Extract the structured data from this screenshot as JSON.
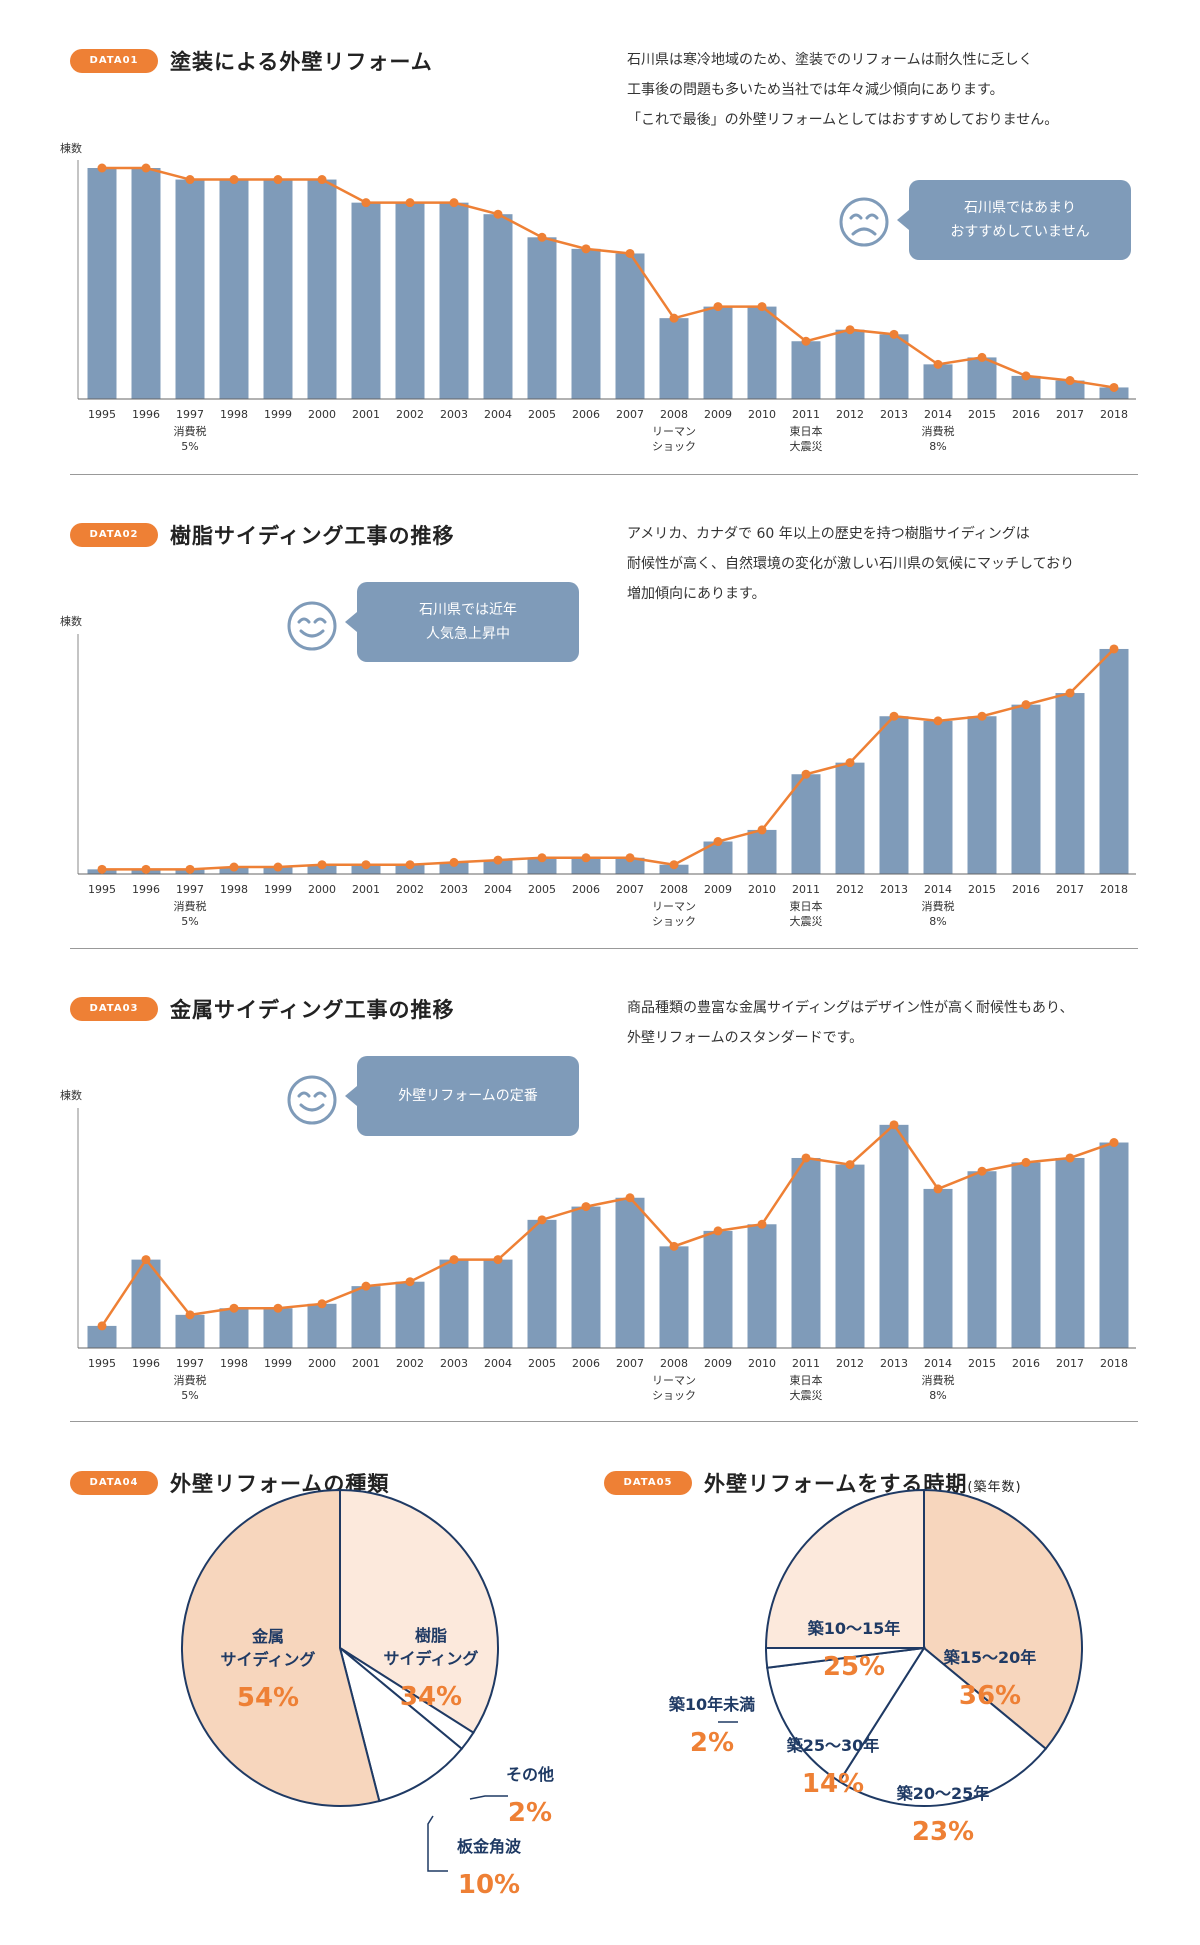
{
  "colors": {
    "bar": "#7f9bb9",
    "line": "#ee8035",
    "accent": "#ee8035",
    "navy": "#1f3a64",
    "pie_fill": "#f7d6bd",
    "pie_light": "#fce9dc"
  },
  "sections": [
    {
      "tag": "DATA01",
      "title": "塗装による外壁リフォーム",
      "desc": [
        "石川県は寒冷地域のため、塗装でのリフォームは耐久性に乏しく",
        "工事後の問題も多いため当社では年々減少傾向にあります。",
        "「これで最後」の外壁リフォームとしてはおすすめしておりません。"
      ],
      "ylabel": "棟数",
      "bubble": [
        "石川県ではあまり",
        "おすすめしていません"
      ],
      "face_icon": "sad-face-icon"
    },
    {
      "tag": "DATA02",
      "title": "樹脂サイディング工事の推移",
      "desc": [
        "アメリカ、カナダで 60 年以上の歴史を持つ樹脂サイディングは",
        "耐候性が高く、自然環境の変化が激しい石川県の気候にマッチしており",
        "増加傾向にあります。"
      ],
      "ylabel": "棟数",
      "bubble": [
        "石川県では近年",
        "人気急上昇中"
      ],
      "face_icon": "smile-face-icon"
    },
    {
      "tag": "DATA03",
      "title": "金属サイディング工事の推移",
      "desc": [
        "商品種類の豊富な金属サイディングはデザイン性が高く耐候性もあり、",
        "外壁リフォームのスタンダードです。"
      ],
      "ylabel": "棟数",
      "bubble": [
        "外壁リフォームの定番"
      ],
      "face_icon": "smile-face-icon"
    }
  ],
  "pie_sections": [
    {
      "tag": "DATA04",
      "title": "外壁リフォームの種類",
      "title_note": ""
    },
    {
      "tag": "DATA05",
      "title": "外壁リフォームをする時期",
      "title_note": "(築年数)"
    }
  ],
  "chart_data": [
    {
      "type": "bar",
      "overlay": "line",
      "categories": [
        "1995",
        "1996",
        "1997",
        "1998",
        "1999",
        "2000",
        "2001",
        "2002",
        "2003",
        "2004",
        "2005",
        "2006",
        "2007",
        "2008",
        "2009",
        "2010",
        "2011",
        "2012",
        "2013",
        "2014",
        "2015",
        "2016",
        "2017",
        "2018"
      ],
      "annotations": {
        "1997": [
          "消費税",
          "5%"
        ],
        "2008": [
          "リーマン",
          "ショック"
        ],
        "2011": [
          "東日本",
          "大震災"
        ],
        "2014": [
          "消費税",
          "8%"
        ]
      },
      "ylabel": "棟数",
      "values": [
        100,
        100,
        95,
        95,
        95,
        95,
        85,
        85,
        85,
        80,
        70,
        65,
        63,
        35,
        40,
        40,
        25,
        30,
        28,
        15,
        18,
        10,
        8,
        5
      ],
      "ylim": [
        0,
        100
      ]
    },
    {
      "type": "bar",
      "overlay": "line",
      "categories": [
        "1995",
        "1996",
        "1997",
        "1998",
        "1999",
        "2000",
        "2001",
        "2002",
        "2003",
        "2004",
        "2005",
        "2006",
        "2007",
        "2008",
        "2009",
        "2010",
        "2011",
        "2012",
        "2013",
        "2014",
        "2015",
        "2016",
        "2017",
        "2018"
      ],
      "annotations": {
        "1997": [
          "消費税",
          "5%"
        ],
        "2008": [
          "リーマン",
          "ショック"
        ],
        "2011": [
          "東日本",
          "大震災"
        ],
        "2014": [
          "消費税",
          "8%"
        ]
      },
      "ylabel": "棟数",
      "values": [
        2,
        2,
        2,
        3,
        3,
        4,
        4,
        4,
        5,
        6,
        7,
        7,
        7,
        4,
        14,
        19,
        43,
        48,
        68,
        66,
        68,
        73,
        78,
        97
      ],
      "ylim": [
        0,
        100
      ]
    },
    {
      "type": "bar",
      "overlay": "line",
      "categories": [
        "1995",
        "1996",
        "1997",
        "1998",
        "1999",
        "2000",
        "2001",
        "2002",
        "2003",
        "2004",
        "2005",
        "2006",
        "2007",
        "2008",
        "2009",
        "2010",
        "2011",
        "2012",
        "2013",
        "2014",
        "2015",
        "2016",
        "2017",
        "2018"
      ],
      "annotations": {
        "1997": [
          "消費税",
          "5%"
        ],
        "2008": [
          "リーマン",
          "ショック"
        ],
        "2011": [
          "東日本",
          "大震災"
        ],
        "2014": [
          "消費税",
          "8%"
        ]
      },
      "ylabel": "棟数",
      "values": [
        10,
        40,
        15,
        18,
        18,
        20,
        28,
        30,
        40,
        40,
        58,
        64,
        68,
        46,
        53,
        56,
        86,
        83,
        101,
        72,
        80,
        84,
        86,
        93
      ],
      "ylim": [
        0,
        105
      ]
    },
    {
      "type": "pie",
      "slices": [
        {
          "label": [
            "金属",
            "サイディング"
          ],
          "value": 54,
          "display": "54%"
        },
        {
          "label": [
            "樹脂",
            "サイディング"
          ],
          "value": 34,
          "display": "34%"
        },
        {
          "label": [
            "その他"
          ],
          "value": 2,
          "display": "2%"
        },
        {
          "label": [
            "板金角波"
          ],
          "value": 10,
          "display": "10%"
        }
      ]
    },
    {
      "type": "pie",
      "slices": [
        {
          "label": [
            "築15〜20年"
          ],
          "value": 36,
          "display": "36%"
        },
        {
          "label": [
            "築20〜25年"
          ],
          "value": 23,
          "display": "23%"
        },
        {
          "label": [
            "築25〜30年"
          ],
          "value": 14,
          "display": "14%"
        },
        {
          "label": [
            "築10年未満"
          ],
          "value": 2,
          "display": "2%"
        },
        {
          "label": [
            "築10〜15年"
          ],
          "value": 25,
          "display": "25%"
        }
      ]
    }
  ]
}
